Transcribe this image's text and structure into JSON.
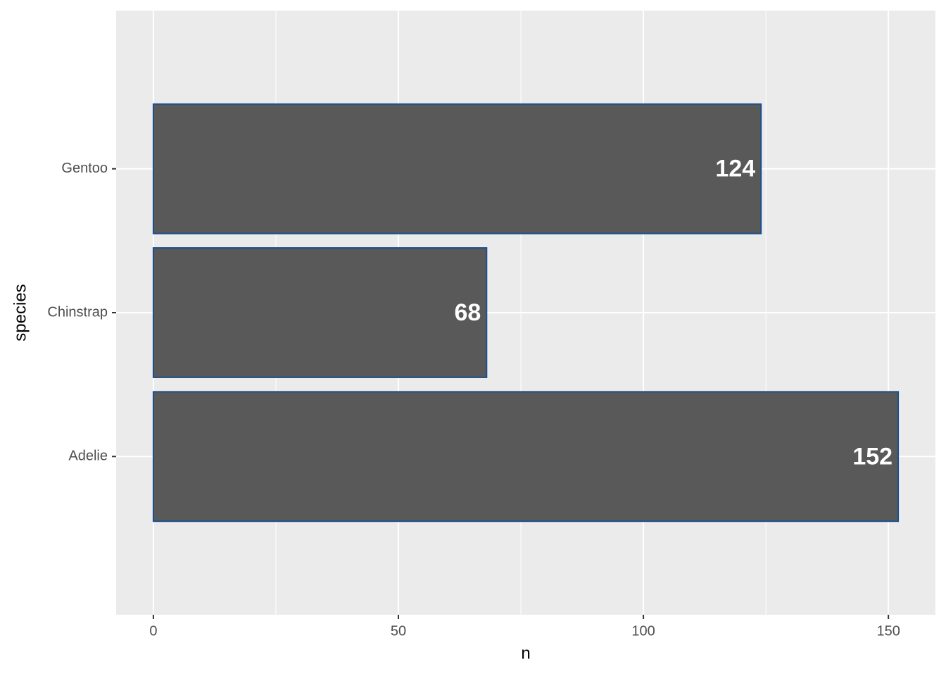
{
  "chart_data": {
    "type": "barh",
    "categories": [
      "Adelie",
      "Chinstrap",
      "Gentoo"
    ],
    "values": [
      152,
      68,
      124
    ],
    "x_label": "n",
    "y_label": "species",
    "xlim": [
      -7.6,
      159.6
    ],
    "xticks": [
      0,
      50,
      100,
      150
    ],
    "x_minor_ticks": [
      25,
      75,
      125
    ],
    "color": "#595959",
    "edge_color": "#1b4f8f",
    "grid": true
  }
}
